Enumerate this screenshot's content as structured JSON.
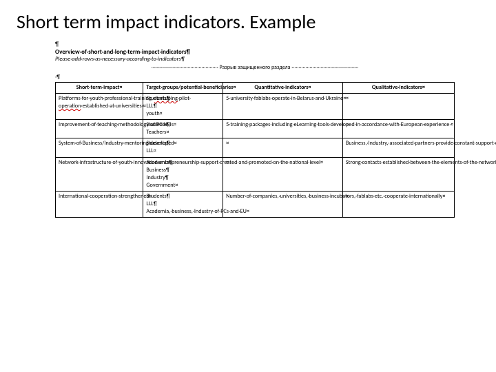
{
  "slide": {
    "title": "Short term impact indicators. Example",
    "background_color": "#ffffff",
    "title_fontsize": 28,
    "title_color": "#000000"
  },
  "doc": {
    "top_pilcrow": "¶",
    "overview_heading": "Overview·of·short·and·long·term·impact·indicators¶",
    "instruction_line": "Please·add·rows·as·necessary·according·to·indicators¶",
    "section_break_label": "Разрыв защищенного раздела",
    "section_break_dots": "················································",
    "table_pilcrow": "·¶"
  },
  "table": {
    "type": "table",
    "border_color": "#000000",
    "text_color": "#000000",
    "font_size": 8.2,
    "columns": [
      {
        "label": "Short-term·impact¤",
        "width_pct": 22
      },
      {
        "label": "Target·groups/potential·beneficiaries¤",
        "width_pct": 20
      },
      {
        "label": "Quantitative·indicators¤",
        "width_pct": 30
      },
      {
        "label": "Qualitative·indicators¤",
        "width_pct": 28
      }
    ],
    "rows": [
      {
        "impact": "Platforms·for·youth·professional·training,·startuping·pilot-operation·established·at·universities·¤",
        "impact_redwave": "startuping",
        "groups": "Students¶\nLLL¶\nyouth¤",
        "quant": "5·university·fablabs·operate·in·Belarus·and·Ukraine¤",
        "qual": "¤"
      },
      {
        "impact": "Improvement·of·teaching·methodology·of·PC·HEIs¤",
        "groups": "Students¶\nTeachers¤",
        "quant": "5·training·packages·including·eLearning·tools·developed·in·accordance·with·European·experience·¤",
        "qual": "¤"
      },
      {
        "impact": "System·of·Business/Industry·mentoring·developed¤",
        "groups": "Students¶\nLLL¤",
        "quant": "¤",
        "qual": "Business,·Industry,·associated·partners·provide·constant·support·of·engineering·startups¤",
        "qual_redwave": "startups"
      },
      {
        "impact": "Network·infrastructure·of·youth·innovation·entrepreneurship·support·created·and·promoted·on·the·national·level¤",
        "groups": "Academia¶\nBusiness¶\nIndustry¶\nGovernment¤",
        "quant": "¤",
        "qual": "Strong·contacts·established·between·the·elements·of·the·network·infrastructure·due·to·governmental·support¸¤"
      },
      {
        "impact": "International·cooperation·strengthened¤",
        "groups": "Students¶\nLLL¶\nAcademia,·business,·Industry·of·PCs·and·EU¤",
        "quant": "Number·of·companies,·universities,·business·incubators,·fablabs·etc.·cooperate·internationally¤",
        "qual": "¤"
      }
    ]
  }
}
